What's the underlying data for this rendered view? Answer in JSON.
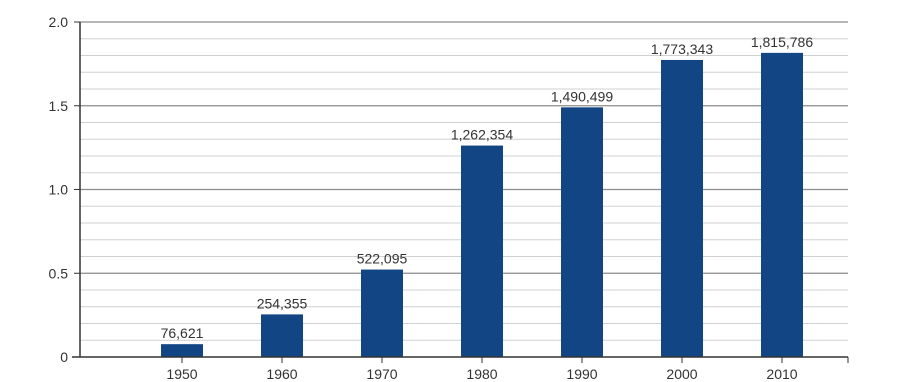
{
  "chart_data": {
    "type": "bar",
    "categories": [
      "1950",
      "1960",
      "1970",
      "1980",
      "1990",
      "2000",
      "2010"
    ],
    "values": [
      76621,
      254355,
      522095,
      1262354,
      1490499,
      1773343,
      1815786
    ],
    "value_labels": [
      "76,621",
      "254,355",
      "522,095",
      "1,262,354",
      "1,490,499",
      "1,773,343",
      "1,815,786"
    ],
    "y_ticks": [
      "0",
      "0.5",
      "1.0",
      "1.5",
      "2.0"
    ],
    "y_scale": 1000000,
    "ylim": [
      0,
      2.0
    ],
    "title": "",
    "xlabel": "",
    "ylabel": "",
    "grid": true,
    "colors": {
      "bar": "#124584",
      "grid_major": "#8c8c8c",
      "grid_minor": "#d0d0d0",
      "axis": "#333333"
    }
  }
}
